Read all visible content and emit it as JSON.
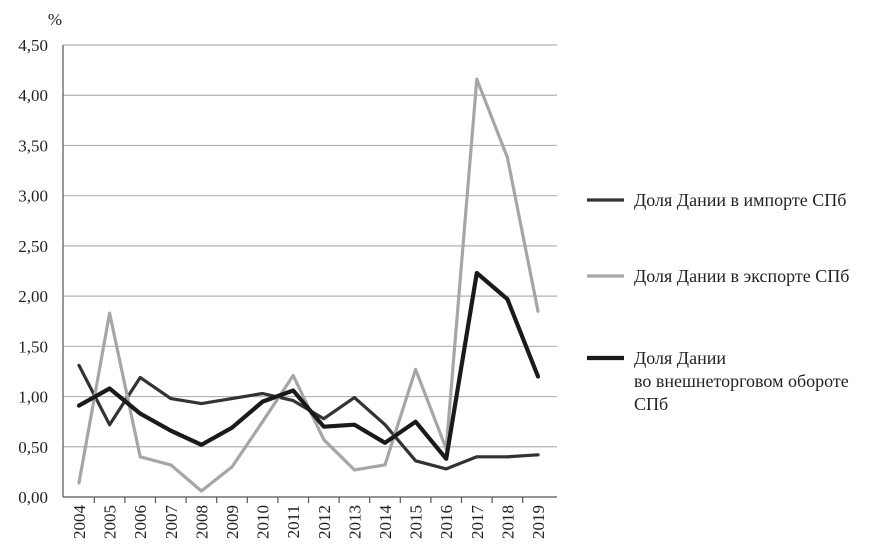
{
  "chart_data": {
    "type": "line",
    "title": "",
    "xlabel": "",
    "ylabel": "%",
    "ylim": [
      0,
      4.5
    ],
    "y_ticks": [
      "0,00",
      "0,50",
      "1,00",
      "1,50",
      "2,00",
      "2,50",
      "3,00",
      "3,50",
      "4,00",
      "4,50"
    ],
    "x": [
      "2004",
      "2005",
      "2006",
      "2007",
      "2008",
      "2009",
      "2010",
      "2011",
      "2012",
      "2013",
      "2014",
      "2015",
      "2016",
      "2017",
      "2018",
      "2019"
    ],
    "grid": true,
    "legend_position": "right",
    "series": [
      {
        "name": "Доля Дании в импорте СПб",
        "legend_lines": [
          "Доля Дании в импорте СПб"
        ],
        "color": "#333333",
        "values": [
          1.31,
          0.72,
          1.19,
          0.98,
          0.93,
          0.98,
          1.03,
          0.96,
          0.78,
          0.99,
          0.72,
          0.36,
          0.28,
          0.4,
          0.4,
          0.42
        ]
      },
      {
        "name": "Доля Дании в экспорте СПб",
        "legend_lines": [
          "Доля Дании в экспорте СПб"
        ],
        "color": "#a6a6a6",
        "values": [
          0.14,
          1.83,
          0.4,
          0.32,
          0.06,
          0.3,
          0.75,
          1.21,
          0.57,
          0.27,
          0.32,
          1.27,
          0.48,
          4.16,
          3.38,
          1.85
        ]
      },
      {
        "name": "Доля Дании во внешнеторговом обороте СПб",
        "legend_lines": [
          "Доля Дании",
          "во внешнеторговом обороте",
          "СПб"
        ],
        "color": "#1a1a1a",
        "values": [
          0.91,
          1.08,
          0.83,
          0.66,
          0.52,
          0.69,
          0.95,
          1.06,
          0.7,
          0.72,
          0.54,
          0.75,
          0.38,
          2.23,
          1.97,
          1.2
        ]
      }
    ]
  }
}
